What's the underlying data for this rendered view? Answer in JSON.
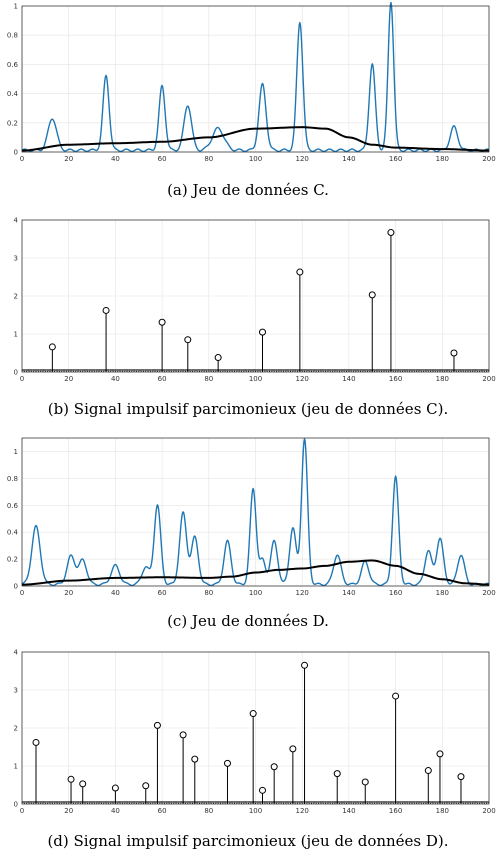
{
  "chart_data": [
    {
      "type": "line",
      "caption": "(a) Jeu de données C.",
      "xlim": [
        0,
        200
      ],
      "ylim": [
        0,
        1
      ],
      "xticks": [
        0,
        20,
        40,
        60,
        80,
        100,
        120,
        140,
        160,
        180,
        200
      ],
      "yticks": [
        0,
        0.2,
        0.4,
        0.6,
        0.8,
        1
      ],
      "grid": true,
      "series": [
        {
          "color": "#1f77b4",
          "peaks": [
            {
              "x": 13,
              "y": 0.22,
              "w": 1.8
            },
            {
              "x": 36,
              "y": 0.51,
              "w": 1.3
            },
            {
              "x": 60,
              "y": 0.44,
              "w": 1.3
            },
            {
              "x": 71,
              "y": 0.31,
              "w": 1.6
            },
            {
              "x": 84,
              "y": 0.15,
              "w": 2.5
            },
            {
              "x": 103,
              "y": 0.45,
              "w": 1.5
            },
            {
              "x": 119,
              "y": 0.88,
              "w": 1.3
            },
            {
              "x": 150,
              "y": 0.59,
              "w": 1.3
            },
            {
              "x": 158,
              "y": 1.02,
              "w": 1.2
            },
            {
              "x": 185,
              "y": 0.16,
              "w": 1.6
            }
          ]
        },
        {
          "color": "#000000",
          "smooth": [
            [
              0,
              0.01
            ],
            [
              20,
              0.05
            ],
            [
              40,
              0.06
            ],
            [
              60,
              0.07
            ],
            [
              80,
              0.1
            ],
            [
              100,
              0.16
            ],
            [
              120,
              0.17
            ],
            [
              130,
              0.16
            ],
            [
              140,
              0.1
            ],
            [
              150,
              0.05
            ],
            [
              160,
              0.03
            ],
            [
              180,
              0.02
            ],
            [
              200,
              0.01
            ]
          ]
        }
      ]
    },
    {
      "type": "stem",
      "caption": "(b) Signal impulsif parcimonieux (jeu de données C).",
      "xlim": [
        0,
        200
      ],
      "ylim": [
        0,
        4
      ],
      "xticks": [
        0,
        20,
        40,
        60,
        80,
        100,
        120,
        140,
        160,
        180,
        200
      ],
      "yticks": [
        0,
        1,
        2,
        3,
        4
      ],
      "grid": true,
      "stems": [
        [
          13,
          0.66
        ],
        [
          36,
          1.62
        ],
        [
          60,
          1.31
        ],
        [
          71,
          0.85
        ],
        [
          84,
          0.38
        ],
        [
          103,
          1.05
        ],
        [
          119,
          2.63
        ],
        [
          150,
          2.03
        ],
        [
          158,
          3.67
        ],
        [
          185,
          0.5
        ]
      ]
    },
    {
      "type": "line",
      "caption": "(c) Jeu de données D.",
      "xlim": [
        0,
        200
      ],
      "ylim": [
        0,
        1.1
      ],
      "xticks": [
        0,
        20,
        40,
        60,
        80,
        100,
        120,
        140,
        160,
        180,
        200
      ],
      "yticks": [
        0,
        0.2,
        0.4,
        0.6,
        0.8,
        1
      ],
      "grid": true,
      "series": [
        {
          "color": "#1f77b4",
          "peaks": [
            {
              "x": 6,
              "y": 0.43,
              "w": 1.8
            },
            {
              "x": 21,
              "y": 0.21,
              "w": 1.7
            },
            {
              "x": 26,
              "y": 0.18,
              "w": 1.7
            },
            {
              "x": 40,
              "y": 0.14,
              "w": 1.8
            },
            {
              "x": 53,
              "y": 0.13,
              "w": 1.6
            },
            {
              "x": 58,
              "y": 0.59,
              "w": 1.4
            },
            {
              "x": 69,
              "y": 0.53,
              "w": 1.5
            },
            {
              "x": 74,
              "y": 0.35,
              "w": 1.5
            },
            {
              "x": 88,
              "y": 0.32,
              "w": 1.5
            },
            {
              "x": 99,
              "y": 0.71,
              "w": 1.3
            },
            {
              "x": 103,
              "y": 0.18,
              "w": 1.3
            },
            {
              "x": 108,
              "y": 0.32,
              "w": 1.5
            },
            {
              "x": 116,
              "y": 0.42,
              "w": 1.4
            },
            {
              "x": 121,
              "y": 1.08,
              "w": 1.3
            },
            {
              "x": 135,
              "y": 0.22,
              "w": 1.6
            },
            {
              "x": 147,
              "y": 0.17,
              "w": 1.6
            },
            {
              "x": 160,
              "y": 0.8,
              "w": 1.3
            },
            {
              "x": 174,
              "y": 0.25,
              "w": 1.5
            },
            {
              "x": 179,
              "y": 0.34,
              "w": 1.5
            },
            {
              "x": 188,
              "y": 0.22,
              "w": 1.5
            }
          ]
        },
        {
          "color": "#000000",
          "smooth": [
            [
              0,
              0.01
            ],
            [
              20,
              0.04
            ],
            [
              40,
              0.06
            ],
            [
              60,
              0.065
            ],
            [
              80,
              0.06
            ],
            [
              90,
              0.07
            ],
            [
              100,
              0.1
            ],
            [
              110,
              0.12
            ],
            [
              120,
              0.13
            ],
            [
              130,
              0.15
            ],
            [
              140,
              0.18
            ],
            [
              150,
              0.19
            ],
            [
              160,
              0.15
            ],
            [
              170,
              0.09
            ],
            [
              180,
              0.05
            ],
            [
              190,
              0.02
            ],
            [
              200,
              0.01
            ]
          ]
        }
      ]
    },
    {
      "type": "stem",
      "caption": "(d) Signal impulsif parcimonieux (jeu de données D).",
      "xlim": [
        0,
        200
      ],
      "ylim": [
        0,
        4
      ],
      "xticks": [
        0,
        20,
        40,
        60,
        80,
        100,
        120,
        140,
        160,
        180,
        200
      ],
      "yticks": [
        0,
        1,
        2,
        3,
        4
      ],
      "grid": true,
      "stems": [
        [
          6,
          1.62
        ],
        [
          21,
          0.65
        ],
        [
          26,
          0.53
        ],
        [
          40,
          0.42
        ],
        [
          53,
          0.48
        ],
        [
          58,
          2.07
        ],
        [
          69,
          1.82
        ],
        [
          74,
          1.18
        ],
        [
          88,
          1.07
        ],
        [
          99,
          2.38
        ],
        [
          103,
          0.36
        ],
        [
          108,
          0.98
        ],
        [
          116,
          1.45
        ],
        [
          121,
          3.65
        ],
        [
          135,
          0.8
        ],
        [
          147,
          0.58
        ],
        [
          160,
          2.84
        ],
        [
          174,
          0.88
        ],
        [
          179,
          1.32
        ],
        [
          188,
          0.72
        ]
      ]
    }
  ]
}
